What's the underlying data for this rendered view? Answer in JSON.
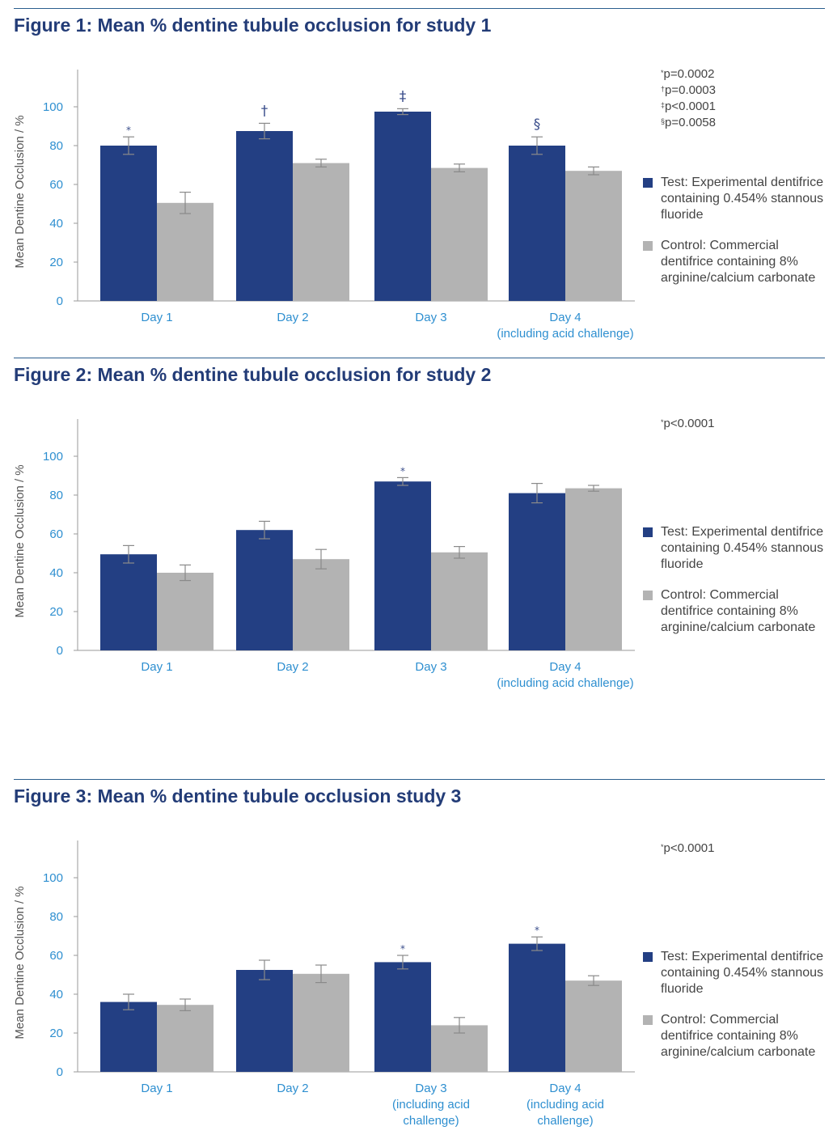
{
  "colors": {
    "test": "#233f83",
    "control": "#b3b3b3",
    "axis": "#9a9a9a",
    "blue_text": "#2e8fd0",
    "title": "#233c77"
  },
  "legend": {
    "test_label": "Test: Experimental dentifrice containing 0.454% stannous fluoride",
    "control_label": "Control: Commercial dentifrice containing 8% arginine/calcium carbonate"
  },
  "figures": [
    {
      "title": "Figure 1: Mean % dentine tubule occlusion for study 1",
      "notes": [
        {
          "mark": "*",
          "text": "p=0.0002"
        },
        {
          "mark": "†",
          "text": "p=0.0003"
        },
        {
          "mark": "‡",
          "text": "p<0.0001"
        },
        {
          "mark": "§",
          "text": "p=0.0058"
        }
      ]
    },
    {
      "title": "Figure 2: Mean % dentine tubule occlusion for study 2",
      "notes": [
        {
          "mark": "*",
          "text": "p<0.0001"
        }
      ]
    },
    {
      "title": "Figure 3: Mean % dentine tubule occlusion study 3",
      "notes": [
        {
          "mark": "*",
          "text": "p<0.0001"
        }
      ]
    }
  ],
  "chart_data": [
    {
      "type": "bar",
      "title": "Figure 1: Mean % dentine tubule occlusion for study 1",
      "ylabel": "Mean Dentine Occlusion / %",
      "ylim": [
        0,
        100
      ],
      "yticks": [
        0,
        20,
        40,
        60,
        80,
        100
      ],
      "categories": [
        [
          "Day 1"
        ],
        [
          "Day 2"
        ],
        [
          "Day 3"
        ],
        [
          "Day 4",
          "(including acid challenge)"
        ]
      ],
      "series": [
        {
          "name": "Test: Experimental dentifrice containing 0.454% stannous fluoride",
          "values": [
            80,
            87.5,
            97.5,
            80
          ],
          "errors": [
            4.5,
            4,
            1.5,
            4.5
          ],
          "markers": [
            "*",
            "†",
            "‡",
            "§"
          ]
        },
        {
          "name": "Control: Commercial dentifrice containing 8% arginine/calcium carbonate",
          "values": [
            50.5,
            71,
            68.5,
            67
          ],
          "errors": [
            5.5,
            2,
            2,
            2
          ],
          "markers": [
            "",
            "",
            "",
            ""
          ]
        }
      ]
    },
    {
      "type": "bar",
      "title": "Figure 2: Mean % dentine tubule occlusion for study 2",
      "ylabel": "Mean Dentine Occlusion / %",
      "ylim": [
        0,
        100
      ],
      "yticks": [
        0,
        20,
        40,
        60,
        80,
        100
      ],
      "categories": [
        [
          "Day 1"
        ],
        [
          "Day 2"
        ],
        [
          "Day 3"
        ],
        [
          "Day 4",
          "(including acid challenge)"
        ]
      ],
      "series": [
        {
          "name": "Test: Experimental dentifrice containing 0.454% stannous fluoride",
          "values": [
            49.5,
            62,
            87,
            81
          ],
          "errors": [
            4.5,
            4.5,
            2,
            5
          ],
          "markers": [
            "",
            "",
            "*",
            ""
          ]
        },
        {
          "name": "Control: Commercial dentifrice containing 8% arginine/calcium carbonate",
          "values": [
            40,
            47,
            50.5,
            83.5
          ],
          "errors": [
            4,
            5,
            3,
            1.5
          ],
          "markers": [
            "",
            "",
            "",
            ""
          ]
        }
      ]
    },
    {
      "type": "bar",
      "title": "Figure 3: Mean % dentine tubule occlusion study 3",
      "ylabel": "Mean Dentine Occlusion / %",
      "ylim": [
        0,
        100
      ],
      "yticks": [
        0,
        20,
        40,
        60,
        80,
        100
      ],
      "categories": [
        [
          "Day 1"
        ],
        [
          "Day 2"
        ],
        [
          "Day 3",
          "(including acid",
          "challenge)"
        ],
        [
          "Day 4",
          "(including acid",
          "challenge)"
        ]
      ],
      "series": [
        {
          "name": "Test: Experimental dentifrice containing 0.454% stannous fluoride",
          "values": [
            36,
            52.5,
            56.5,
            66
          ],
          "errors": [
            4,
            5,
            3.5,
            3.5
          ],
          "markers": [
            "",
            "",
            "*",
            "*"
          ]
        },
        {
          "name": "Control: Commercial dentifrice containing 8% arginine/calcium carbonate",
          "values": [
            34.5,
            50.5,
            24,
            47
          ],
          "errors": [
            3,
            4.5,
            4,
            2.5
          ],
          "markers": [
            "",
            "",
            "",
            ""
          ]
        }
      ]
    }
  ]
}
